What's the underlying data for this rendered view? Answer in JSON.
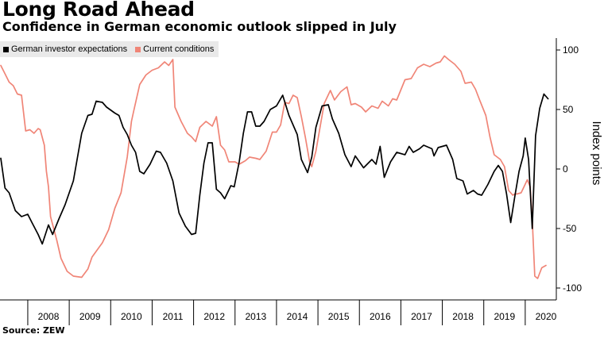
{
  "title": "Long Road Ahead",
  "subtitle": "Confidence in German economic outlook slipped in July",
  "source": "Source: ZEW",
  "chart_data": {
    "type": "line",
    "ylabel": "Index points",
    "ylim": [
      -110,
      110
    ],
    "y_ticks": [
      -100,
      -50,
      0,
      50,
      100
    ],
    "x_ticks": [
      "2008",
      "2009",
      "2010",
      "2011",
      "2012",
      "2013",
      "2014",
      "2015",
      "2016",
      "2017",
      "2018",
      "2019",
      "2020"
    ],
    "x_range": [
      2007.33,
      2020.75
    ],
    "grid": false,
    "legend": "top-left",
    "series": [
      {
        "name": "German investor expectations",
        "color": "#000000",
        "points": [
          [
            2007.35,
            9
          ],
          [
            2007.45,
            -16
          ],
          [
            2007.55,
            -20
          ],
          [
            2007.7,
            -35
          ],
          [
            2007.85,
            -40
          ],
          [
            2008.0,
            -38
          ],
          [
            2008.1,
            -45
          ],
          [
            2008.25,
            -55
          ],
          [
            2008.35,
            -63
          ],
          [
            2008.5,
            -47
          ],
          [
            2008.6,
            -55
          ],
          [
            2008.75,
            -42
          ],
          [
            2008.9,
            -30
          ],
          [
            2009.1,
            -10
          ],
          [
            2009.3,
            30
          ],
          [
            2009.45,
            45
          ],
          [
            2009.55,
            46
          ],
          [
            2009.65,
            57
          ],
          [
            2009.8,
            56
          ],
          [
            2009.9,
            52
          ],
          [
            2010.1,
            47
          ],
          [
            2010.2,
            45
          ],
          [
            2010.3,
            35
          ],
          [
            2010.4,
            29
          ],
          [
            2010.5,
            20
          ],
          [
            2010.6,
            14
          ],
          [
            2010.7,
            -2
          ],
          [
            2010.8,
            -4
          ],
          [
            2010.95,
            4
          ],
          [
            2011.1,
            15
          ],
          [
            2011.2,
            14
          ],
          [
            2011.35,
            5
          ],
          [
            2011.5,
            -10
          ],
          [
            2011.65,
            -37
          ],
          [
            2011.8,
            -48
          ],
          [
            2011.95,
            -55
          ],
          [
            2012.05,
            -54
          ],
          [
            2012.15,
            -22
          ],
          [
            2012.25,
            5
          ],
          [
            2012.35,
            22
          ],
          [
            2012.45,
            22
          ],
          [
            2012.55,
            -17
          ],
          [
            2012.65,
            -20
          ],
          [
            2012.75,
            -25
          ],
          [
            2012.9,
            -14
          ],
          [
            2012.98,
            -15
          ],
          [
            2013.1,
            6
          ],
          [
            2013.2,
            30
          ],
          [
            2013.3,
            48
          ],
          [
            2013.4,
            48
          ],
          [
            2013.5,
            36
          ],
          [
            2013.6,
            36
          ],
          [
            2013.7,
            40
          ],
          [
            2013.85,
            50
          ],
          [
            2014.0,
            53
          ],
          [
            2014.15,
            62
          ],
          [
            2014.3,
            45
          ],
          [
            2014.5,
            29
          ],
          [
            2014.6,
            8
          ],
          [
            2014.75,
            -3
          ],
          [
            2014.85,
            10
          ],
          [
            2014.95,
            35
          ],
          [
            2015.1,
            53
          ],
          [
            2015.25,
            54
          ],
          [
            2015.35,
            42
          ],
          [
            2015.5,
            30
          ],
          [
            2015.65,
            12
          ],
          [
            2015.8,
            2
          ],
          [
            2015.9,
            11
          ],
          [
            2016.1,
            1
          ],
          [
            2016.3,
            8
          ],
          [
            2016.4,
            4
          ],
          [
            2016.5,
            19
          ],
          [
            2016.6,
            -7
          ],
          [
            2016.75,
            6
          ],
          [
            2016.9,
            14
          ],
          [
            2017.1,
            12
          ],
          [
            2017.2,
            19
          ],
          [
            2017.3,
            14
          ],
          [
            2017.45,
            17
          ],
          [
            2017.55,
            20
          ],
          [
            2017.75,
            17
          ],
          [
            2017.8,
            11
          ],
          [
            2017.9,
            18
          ],
          [
            2018.1,
            20
          ],
          [
            2018.25,
            8
          ],
          [
            2018.35,
            -8
          ],
          [
            2018.5,
            -10
          ],
          [
            2018.6,
            -21
          ],
          [
            2018.75,
            -18
          ],
          [
            2018.85,
            -21
          ],
          [
            2018.95,
            -22
          ],
          [
            2019.1,
            -13
          ],
          [
            2019.25,
            -2
          ],
          [
            2019.35,
            3
          ],
          [
            2019.45,
            -2
          ],
          [
            2019.55,
            -21
          ],
          [
            2019.65,
            -45
          ],
          [
            2019.75,
            -23
          ],
          [
            2019.85,
            -2
          ],
          [
            2019.95,
            11
          ],
          [
            2020.0,
            26
          ],
          [
            2020.08,
            8
          ],
          [
            2020.17,
            -50
          ],
          [
            2020.25,
            28
          ],
          [
            2020.35,
            51
          ],
          [
            2020.45,
            63
          ],
          [
            2020.55,
            59
          ]
        ]
      },
      {
        "name": "Current conditions",
        "color": "#f08577",
        "points": [
          [
            2007.35,
            87
          ],
          [
            2007.45,
            80
          ],
          [
            2007.55,
            73
          ],
          [
            2007.65,
            70
          ],
          [
            2007.75,
            63
          ],
          [
            2007.85,
            62
          ],
          [
            2007.95,
            32
          ],
          [
            2008.05,
            33
          ],
          [
            2008.15,
            30
          ],
          [
            2008.25,
            34
          ],
          [
            2008.3,
            33
          ],
          [
            2008.4,
            20
          ],
          [
            2008.45,
            -2
          ],
          [
            2008.5,
            -15
          ],
          [
            2008.55,
            -40
          ],
          [
            2008.7,
            -60
          ],
          [
            2008.8,
            -75
          ],
          [
            2008.95,
            -86
          ],
          [
            2009.1,
            -90
          ],
          [
            2009.3,
            -91
          ],
          [
            2009.45,
            -84
          ],
          [
            2009.55,
            -74
          ],
          [
            2009.8,
            -62
          ],
          [
            2009.95,
            -51
          ],
          [
            2010.1,
            -33
          ],
          [
            2010.25,
            -20
          ],
          [
            2010.4,
            10
          ],
          [
            2010.5,
            40
          ],
          [
            2010.55,
            48
          ],
          [
            2010.7,
            71
          ],
          [
            2010.85,
            79
          ],
          [
            2011.0,
            83
          ],
          [
            2011.15,
            85
          ],
          [
            2011.3,
            90
          ],
          [
            2011.4,
            87
          ],
          [
            2011.5,
            92
          ],
          [
            2011.55,
            52
          ],
          [
            2011.7,
            40
          ],
          [
            2011.85,
            30
          ],
          [
            2011.95,
            27
          ],
          [
            2012.05,
            23
          ],
          [
            2012.15,
            35
          ],
          [
            2012.3,
            40
          ],
          [
            2012.45,
            36
          ],
          [
            2012.55,
            44
          ],
          [
            2012.65,
            20
          ],
          [
            2012.75,
            16
          ],
          [
            2012.85,
            6
          ],
          [
            2013.0,
            6
          ],
          [
            2013.1,
            4
          ],
          [
            2013.25,
            7
          ],
          [
            2013.35,
            10
          ],
          [
            2013.5,
            9
          ],
          [
            2013.6,
            8
          ],
          [
            2013.75,
            15
          ],
          [
            2013.9,
            31
          ],
          [
            2014.0,
            31
          ],
          [
            2014.1,
            37
          ],
          [
            2014.2,
            56
          ],
          [
            2014.3,
            55
          ],
          [
            2014.4,
            62
          ],
          [
            2014.5,
            60
          ],
          [
            2014.6,
            44
          ],
          [
            2014.7,
            26
          ],
          [
            2014.8,
            6
          ],
          [
            2014.85,
            2
          ],
          [
            2014.95,
            15
          ],
          [
            2015.05,
            35
          ],
          [
            2015.15,
            55
          ],
          [
            2015.3,
            66
          ],
          [
            2015.4,
            58
          ],
          [
            2015.55,
            65
          ],
          [
            2015.7,
            69
          ],
          [
            2015.8,
            54
          ],
          [
            2015.9,
            55
          ],
          [
            2016.05,
            52
          ],
          [
            2016.15,
            48
          ],
          [
            2016.3,
            53
          ],
          [
            2016.45,
            51
          ],
          [
            2016.55,
            57
          ],
          [
            2016.7,
            53
          ],
          [
            2016.8,
            59
          ],
          [
            2016.9,
            58
          ],
          [
            2017.1,
            75
          ],
          [
            2017.25,
            76
          ],
          [
            2017.4,
            85
          ],
          [
            2017.55,
            88
          ],
          [
            2017.7,
            86
          ],
          [
            2017.85,
            89
          ],
          [
            2017.95,
            90
          ],
          [
            2018.05,
            95
          ],
          [
            2018.15,
            92
          ],
          [
            2018.3,
            88
          ],
          [
            2018.45,
            82
          ],
          [
            2018.55,
            72
          ],
          [
            2018.7,
            73
          ],
          [
            2018.8,
            67
          ],
          [
            2018.9,
            58
          ],
          [
            2019.05,
            45
          ],
          [
            2019.15,
            27
          ],
          [
            2019.25,
            12
          ],
          [
            2019.4,
            8
          ],
          [
            2019.5,
            2
          ],
          [
            2019.6,
            -18
          ],
          [
            2019.7,
            -22
          ],
          [
            2019.75,
            -21
          ],
          [
            2019.8,
            -21
          ],
          [
            2019.9,
            -20
          ],
          [
            2019.97,
            -15
          ],
          [
            2020.05,
            -9
          ],
          [
            2020.12,
            -15
          ],
          [
            2020.17,
            -42
          ],
          [
            2020.23,
            -90
          ],
          [
            2020.3,
            -92
          ],
          [
            2020.4,
            -83
          ],
          [
            2020.5,
            -81
          ]
        ]
      }
    ]
  }
}
